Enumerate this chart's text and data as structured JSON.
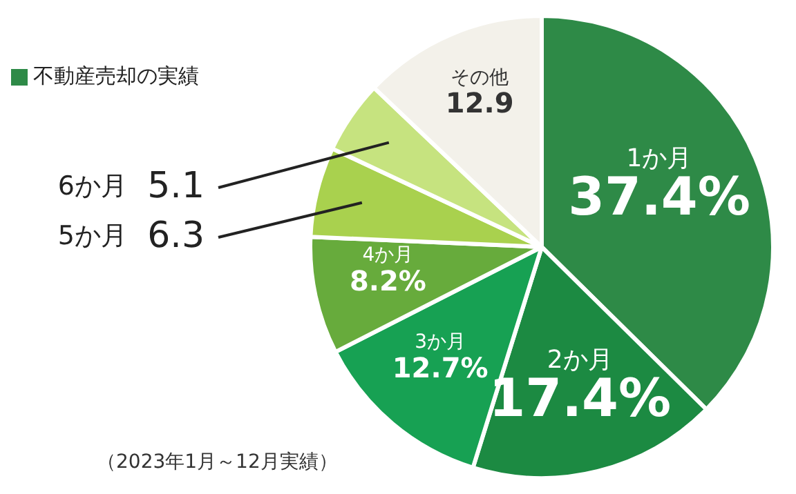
{
  "chart_data": {
    "type": "pie",
    "title": "不動産売却の実績",
    "categories": [
      "1か月",
      "2か月",
      "3か月",
      "4か月",
      "5か月",
      "6か月",
      "その他"
    ],
    "values": [
      37.4,
      17.4,
      12.7,
      8.2,
      6.3,
      5.1,
      12.9
    ],
    "colors": [
      "#2e8a47",
      "#1c8a42",
      "#17a153",
      "#67ab3c",
      "#a9d14e",
      "#c6e37f",
      "#f3f1ea"
    ],
    "value_labels": [
      "37.4%",
      "17.4%",
      "12.7%",
      "8.2%",
      "6.3",
      "5.1",
      "12.9"
    ],
    "annotations": [
      "（2023年1月～12月実績）"
    ],
    "legend": false
  }
}
